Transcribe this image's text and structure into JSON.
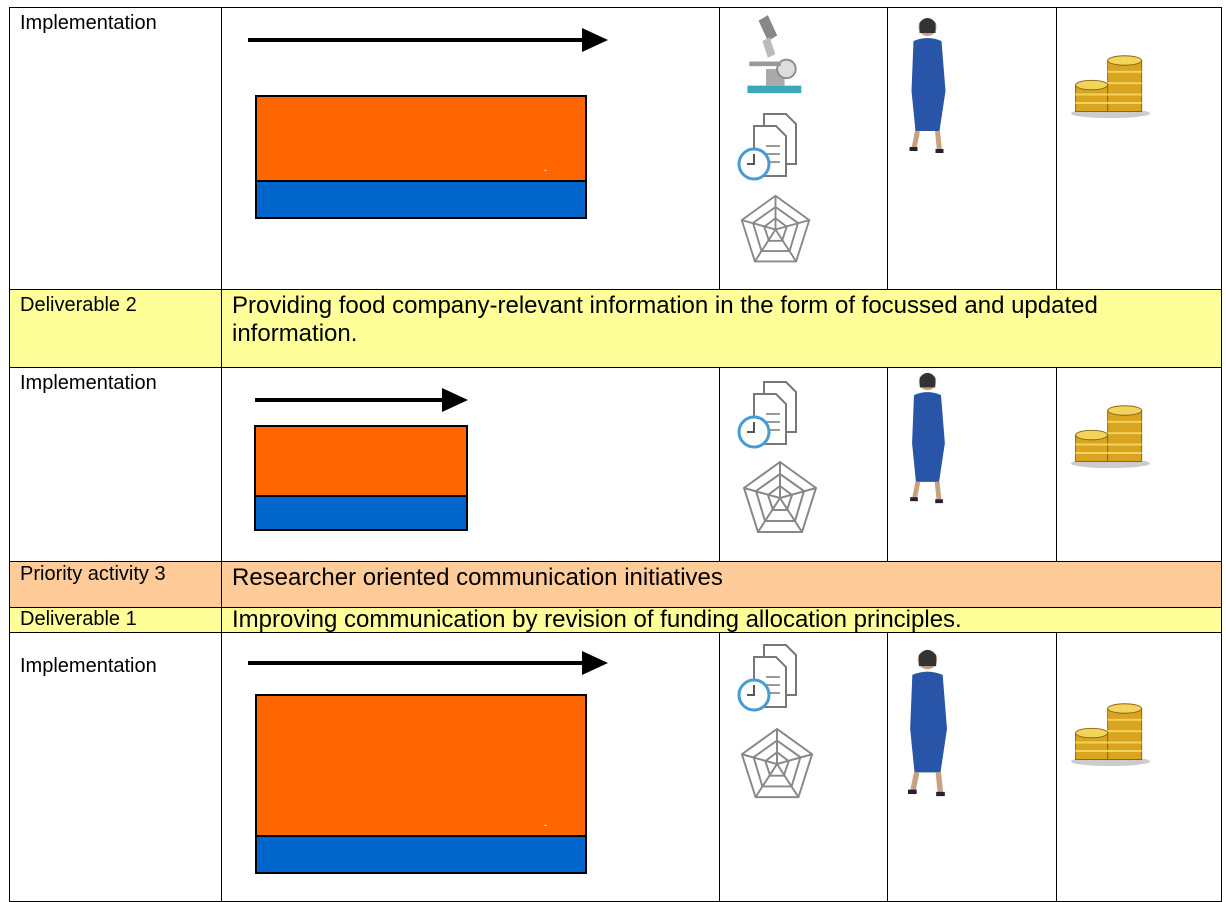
{
  "rows": [
    {
      "label": "Implementation",
      "note": "-"
    },
    {
      "label": "Deliverable 2",
      "text": "Providing food company-relevant information in the form of focussed and updated information."
    },
    {
      "label": "Implementation"
    },
    {
      "label": "Priority activity 3",
      "text": "Researcher oriented communication initiatives"
    },
    {
      "label": "Deliverable 1",
      "text": "Improving communication by revision of funding allocation principles."
    },
    {
      "label": "Implementation",
      "note": "-"
    }
  ]
}
